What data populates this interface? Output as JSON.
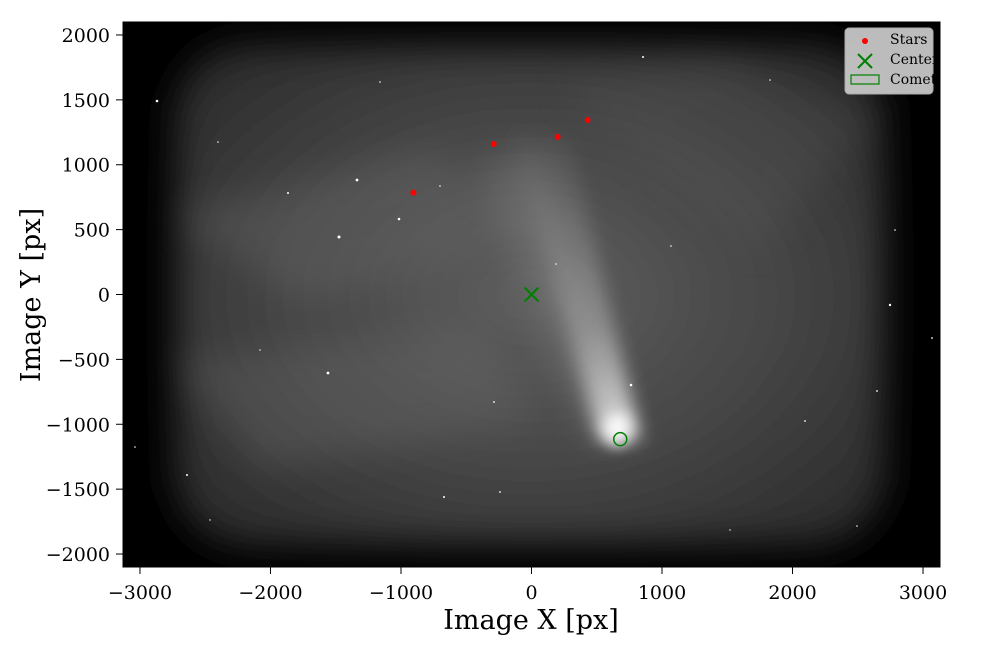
{
  "chart_data": {
    "type": "scatter",
    "xlabel": "Image X [px]",
    "ylabel": "Image Y [px]",
    "xlim": [
      -3130,
      3130
    ],
    "ylim": [
      -2100,
      2100
    ],
    "xticks": [
      -3000,
      -2000,
      -1000,
      0,
      1000,
      2000,
      3000
    ],
    "yticks": [
      -2000,
      -1500,
      -1000,
      -500,
      0,
      500,
      1000,
      1500,
      2000
    ],
    "xtick_labels": [
      "−3000",
      "−2000",
      "−1000",
      "0",
      "1000",
      "2000",
      "3000"
    ],
    "ytick_labels": [
      "−2000",
      "−1500",
      "−1000",
      "−500",
      "0",
      "500",
      "1000",
      "1500",
      "2000"
    ],
    "grid": false,
    "background": "grayscale image of a comet with a long tail against a star field",
    "legend": {
      "position": "top-right",
      "entries": [
        {
          "label": "Stars",
          "marker": "dot",
          "color": "#ff0000"
        },
        {
          "label": "Center",
          "marker": "x",
          "color": "#008000"
        },
        {
          "label": "Comet",
          "marker": "open-rectangle",
          "color": "#008000"
        }
      ]
    },
    "series": [
      {
        "name": "Stars",
        "marker": "dot",
        "color": "#ff0000",
        "points": [
          {
            "x": -905,
            "y": 785
          },
          {
            "x": -290,
            "y": 1160
          },
          {
            "x": 200,
            "y": 1215
          },
          {
            "x": 430,
            "y": 1345
          }
        ]
      },
      {
        "name": "Center",
        "marker": "x",
        "color": "#008000",
        "points": [
          {
            "x": 0,
            "y": 0
          }
        ]
      },
      {
        "name": "Comet",
        "marker": "open-circle",
        "color": "#008000",
        "points": [
          {
            "x": 680,
            "y": -1115
          }
        ]
      }
    ]
  }
}
